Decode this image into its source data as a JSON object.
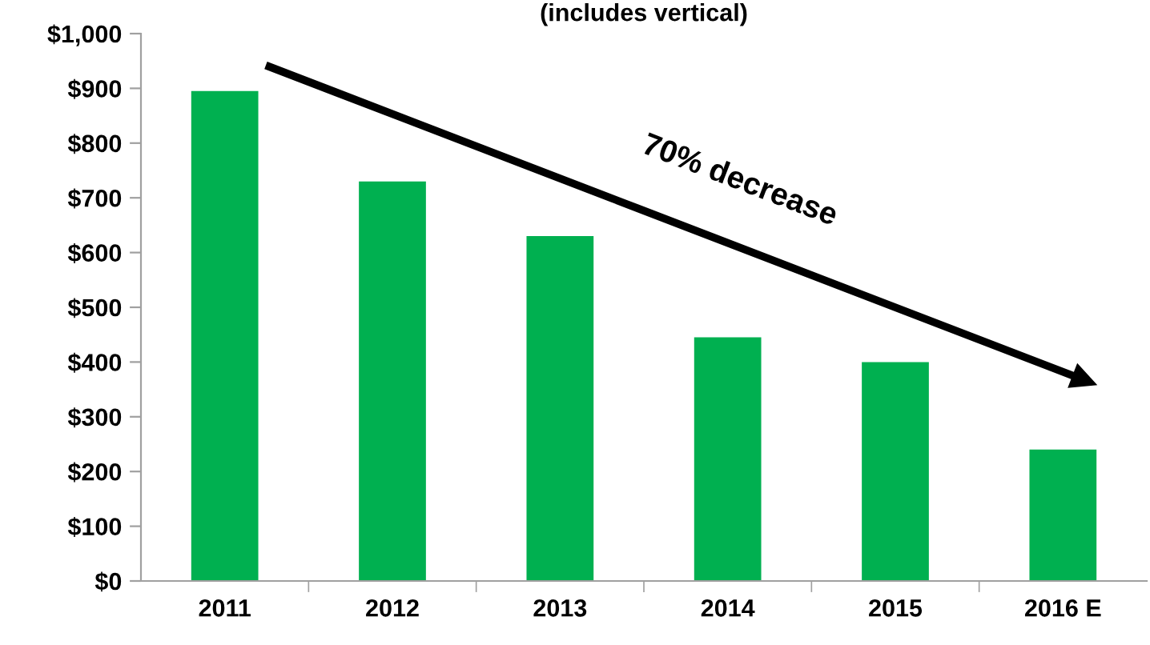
{
  "chart_data": {
    "type": "bar",
    "title": "(includes vertical)",
    "categories": [
      "2011",
      "2012",
      "2013",
      "2014",
      "2015",
      "2016 E"
    ],
    "values": [
      895,
      730,
      630,
      445,
      400,
      240
    ],
    "color": "#00b050",
    "ylim": [
      0,
      1000
    ],
    "yticks": [
      {
        "value": 0,
        "label": "$0"
      },
      {
        "value": 100,
        "label": "$100"
      },
      {
        "value": 200,
        "label": "$200"
      },
      {
        "value": 300,
        "label": "$300"
      },
      {
        "value": 400,
        "label": "$400"
      },
      {
        "value": 500,
        "label": "$500"
      },
      {
        "value": 600,
        "label": "$600"
      },
      {
        "value": 700,
        "label": "$700"
      },
      {
        "value": 800,
        "label": "$800"
      },
      {
        "value": 900,
        "label": "$900"
      },
      {
        "value": 1000,
        "label": "$1,000"
      }
    ],
    "annotations": [
      "70% decrease"
    ],
    "grid": false
  }
}
